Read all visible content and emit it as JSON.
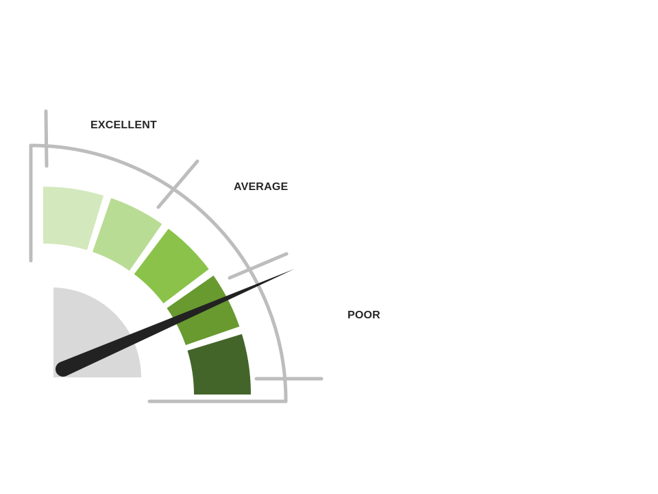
{
  "labels": {
    "excellent": "EXCELLENT",
    "average": "AVERAGE",
    "poor": "POOR"
  },
  "gauge": {
    "segment_colors": [
      "#d3e8bc",
      "#b9dc95",
      "#8bc34a",
      "#689a30",
      "#44652a"
    ],
    "needle_position": 0.74,
    "needle_color": "#222222",
    "frame_color": "#bdbdbd",
    "hub_color": "#d9d9d9"
  }
}
